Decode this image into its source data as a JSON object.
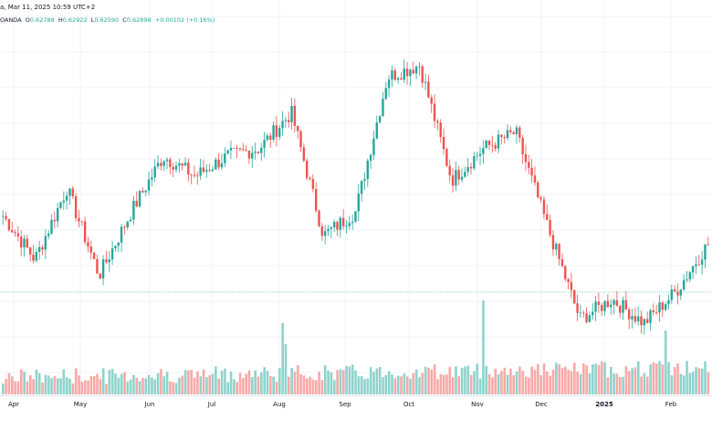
{
  "header": {
    "title_fragment": "a, Mar 11, 2025 10:59 UTC+2"
  },
  "ohlc": {
    "source": "OANDA",
    "open_label": "O",
    "open": "0.62788",
    "high_label": "H",
    "high": "0.62922",
    "low_label": "L",
    "low": "0.62590",
    "close_label": "C",
    "close": "0.62896",
    "change": "+0.00102 (+0.16%)"
  },
  "colors": {
    "up": "#26a69a",
    "down": "#ef5350",
    "up_volume": "#8fd3cc",
    "down_volume": "#f7a9a7",
    "grid": "#f0f3fa",
    "axis_text": "#131722",
    "price_line": "#22ab94"
  },
  "chart_data": {
    "type": "candlestick",
    "grid": true,
    "x_tick_labels": [
      "Apr",
      "May",
      "Jun",
      "Jul",
      "Aug",
      "Sep",
      "Oct",
      "Nov",
      "Dec",
      "2025",
      "Feb"
    ],
    "price_path": [
      0.651,
      0.64,
      0.658,
      0.636,
      0.652,
      0.666,
      0.661,
      0.666,
      0.668,
      0.677,
      0.646,
      0.652,
      0.686,
      0.689,
      0.66,
      0.668,
      0.672,
      0.648,
      0.625,
      0.63,
      0.624,
      0.632,
      0.644
    ],
    "volume_level": "relative, spikes near early Aug, early Nov, late Feb"
  }
}
